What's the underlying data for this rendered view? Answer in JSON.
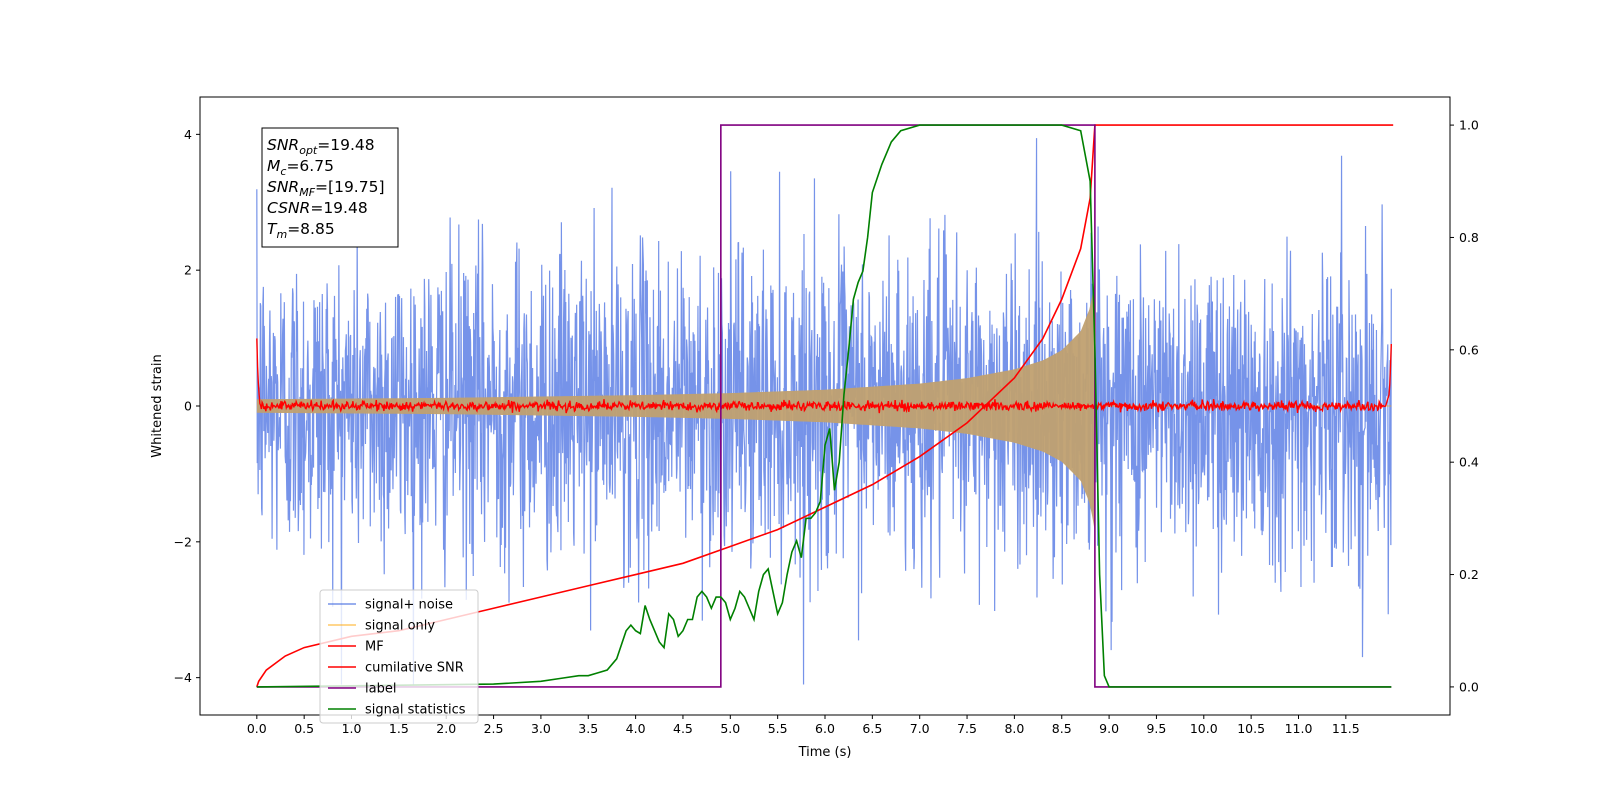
{
  "chart_data": {
    "type": "line",
    "xlabel": "Time (s)",
    "ylabel": "Whitened strain",
    "xlim": [
      -0.6,
      12.6
    ],
    "ylim": [
      -4.55,
      4.55
    ],
    "y2lim": [
      -0.05,
      1.05
    ],
    "x_ticks": [
      0.0,
      0.5,
      1.0,
      1.5,
      2.0,
      2.5,
      3.0,
      3.5,
      4.0,
      4.5,
      5.0,
      5.5,
      6.0,
      6.5,
      7.0,
      7.5,
      8.0,
      8.5,
      9.0,
      9.5,
      10.0,
      10.5,
      11.0,
      11.5
    ],
    "x_tick_labels": [
      "0.0",
      "0.5",
      "1.0",
      "1.5",
      "2.0",
      "2.5",
      "3.0",
      "3.5",
      "4.0",
      "4.5",
      "5.0",
      "5.5",
      "6.0",
      "6.5",
      "7.0",
      "7.5",
      "8.0",
      "8.5",
      "9.0",
      "9.5",
      "10.0",
      "10.5",
      "11.0",
      "11.5"
    ],
    "y_ticks": [
      -4,
      -2,
      0,
      2,
      4
    ],
    "y_tick_labels": [
      "−4",
      "−2",
      "0",
      "2",
      "4"
    ],
    "y2_ticks": [
      0.0,
      0.2,
      0.4,
      0.6,
      0.8,
      1.0
    ],
    "y2_tick_labels": [
      "0.0",
      "0.2",
      "0.4",
      "0.6",
      "0.8",
      "1.0"
    ],
    "grid": false,
    "legend_position": "lower-left",
    "annotation": {
      "lines": [
        {
          "sym": "SNR",
          "sub": "opt",
          "rest": "=19.48"
        },
        {
          "sym": "M",
          "sub": "c",
          "rest": "=6.75"
        },
        {
          "sym": "SNR",
          "sub": "MF",
          "rest": "=[19.75]"
        },
        {
          "sym": "CSNR",
          "sub": "",
          "rest": "=19.48"
        },
        {
          "sym": "T",
          "sub": "m",
          "rest": "=8.85"
        }
      ]
    },
    "series": [
      {
        "name": "signal+ noise",
        "color": "#4169e1",
        "axis": "left",
        "kind": "noise_band",
        "t_start": 0.0,
        "t_end": 11.98,
        "typical_envelope": 2.3,
        "max_abs": 4.1
      },
      {
        "name": "signal only",
        "color": "#ffa500",
        "axis": "left",
        "kind": "chirp_envelope",
        "t_start": 0.0,
        "t_merge": 8.85,
        "t_end": 11.98,
        "envelope": {
          "x": [
            0.0,
            2.0,
            4.0,
            5.0,
            6.0,
            7.0,
            7.5,
            8.0,
            8.3,
            8.5,
            8.7,
            8.8,
            8.85
          ],
          "y": [
            0.1,
            0.12,
            0.16,
            0.19,
            0.24,
            0.33,
            0.41,
            0.54,
            0.67,
            0.82,
            1.1,
            1.45,
            1.85
          ]
        }
      },
      {
        "name": "MF",
        "color": "#ff0000",
        "axis": "left",
        "kind": "matched_filter",
        "baseline": 0.0,
        "jitter": 0.07,
        "edge_start": 1.0,
        "edge_end": 0.95
      },
      {
        "name": "cumilative SNR",
        "color": "#ff0000",
        "axis": "right",
        "x": [
          0.0,
          0.02,
          0.1,
          0.3,
          0.5,
          1.0,
          1.5,
          2.0,
          2.5,
          3.0,
          3.5,
          4.0,
          4.5,
          5.0,
          5.5,
          6.0,
          6.5,
          7.0,
          7.5,
          8.0,
          8.3,
          8.5,
          8.7,
          8.8,
          8.85,
          12.0
        ],
        "y": [
          0.0,
          0.01,
          0.03,
          0.055,
          0.07,
          0.09,
          0.1,
          0.12,
          0.14,
          0.16,
          0.18,
          0.2,
          0.22,
          0.25,
          0.28,
          0.32,
          0.36,
          0.41,
          0.47,
          0.55,
          0.62,
          0.69,
          0.78,
          0.87,
          1.0,
          1.0
        ]
      },
      {
        "name": "label",
        "color": "#800080",
        "axis": "right",
        "x": [
          0.0,
          4.9,
          4.9,
          8.85,
          8.85,
          11.98
        ],
        "y": [
          0.0,
          0.0,
          1.0,
          1.0,
          0.0,
          0.0
        ]
      },
      {
        "name": "signal statistics",
        "color": "#008000",
        "axis": "right",
        "x": [
          0.0,
          2.5,
          3.0,
          3.2,
          3.4,
          3.5,
          3.6,
          3.7,
          3.8,
          3.9,
          3.95,
          4.0,
          4.05,
          4.1,
          4.15,
          4.2,
          4.25,
          4.3,
          4.35,
          4.4,
          4.45,
          4.5,
          4.55,
          4.6,
          4.65,
          4.7,
          4.75,
          4.8,
          4.85,
          4.9,
          4.95,
          5.0,
          5.05,
          5.1,
          5.15,
          5.2,
          5.25,
          5.3,
          5.35,
          5.4,
          5.45,
          5.5,
          5.55,
          5.6,
          5.65,
          5.7,
          5.75,
          5.8,
          5.85,
          5.9,
          5.95,
          6.0,
          6.05,
          6.1,
          6.15,
          6.2,
          6.25,
          6.3,
          6.35,
          6.4,
          6.45,
          6.5,
          6.6,
          6.7,
          6.8,
          7.0,
          7.5,
          8.0,
          8.5,
          8.7,
          8.8,
          8.85,
          8.9,
          8.95,
          9.0,
          11.98
        ],
        "y": [
          0.0,
          0.005,
          0.01,
          0.015,
          0.02,
          0.02,
          0.025,
          0.03,
          0.05,
          0.1,
          0.11,
          0.1,
          0.095,
          0.145,
          0.12,
          0.1,
          0.08,
          0.07,
          0.13,
          0.12,
          0.09,
          0.1,
          0.12,
          0.12,
          0.16,
          0.17,
          0.16,
          0.14,
          0.16,
          0.16,
          0.15,
          0.12,
          0.14,
          0.17,
          0.16,
          0.14,
          0.12,
          0.17,
          0.2,
          0.21,
          0.17,
          0.13,
          0.15,
          0.2,
          0.24,
          0.26,
          0.23,
          0.3,
          0.3,
          0.31,
          0.33,
          0.43,
          0.46,
          0.35,
          0.4,
          0.52,
          0.6,
          0.69,
          0.72,
          0.74,
          0.8,
          0.88,
          0.93,
          0.97,
          0.99,
          1.0,
          1.0,
          1.0,
          1.0,
          0.99,
          0.9,
          0.6,
          0.2,
          0.02,
          0.0,
          0.0
        ]
      }
    ]
  }
}
